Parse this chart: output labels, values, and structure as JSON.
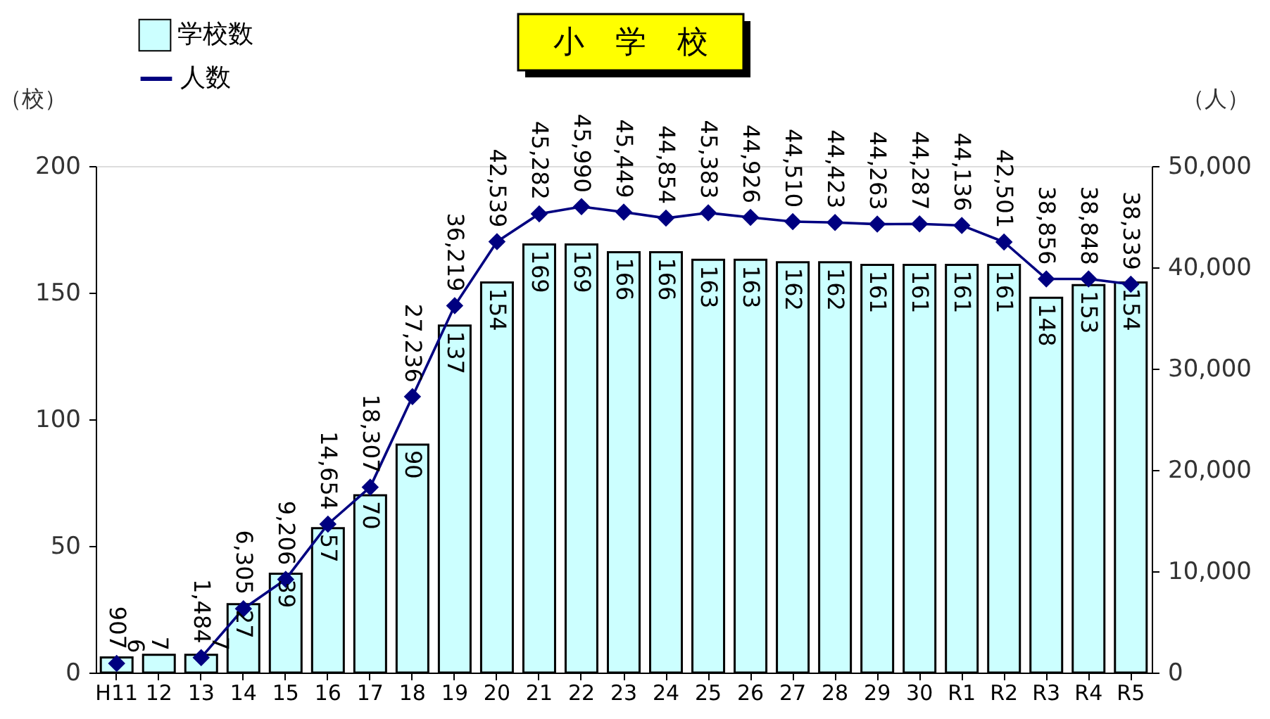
{
  "chart_data": {
    "type": "bar",
    "title": "小　学　校",
    "categories": [
      "H11",
      "12",
      "13",
      "14",
      "15",
      "16",
      "17",
      "18",
      "19",
      "20",
      "21",
      "22",
      "23",
      "24",
      "25",
      "26",
      "27",
      "28",
      "29",
      "30",
      "R1",
      "R2",
      "R3",
      "R4",
      "R5"
    ],
    "series": [
      {
        "name": "学校数",
        "type": "bar",
        "color": "#ccffff",
        "values": [
          6,
          7,
          7,
          27,
          39,
          57,
          70,
          90,
          137,
          154,
          169,
          169,
          166,
          166,
          163,
          163,
          162,
          162,
          161,
          161,
          161,
          161,
          148,
          153,
          154
        ]
      },
      {
        "name": "人数",
        "type": "line",
        "axis": "y2",
        "color": "#000080",
        "values": [
          907,
          null,
          1484,
          6305,
          9206,
          14654,
          18307,
          27236,
          36219,
          42539,
          45282,
          45990,
          45449,
          44854,
          45383,
          44926,
          44510,
          44423,
          44263,
          44287,
          44136,
          42501,
          38856,
          38848,
          38339
        ],
        "value_labels": [
          "907",
          null,
          "1,484",
          "6,305",
          "9,206",
          "14,654",
          "18,307",
          "27,236",
          "36,219",
          "42,539",
          "45,282",
          "45,990",
          "45,449",
          "44,854",
          "45,383",
          "44,926",
          "44,510",
          "44,423",
          "44,263",
          "44,287",
          "44,136",
          "42,501",
          "38,856",
          "38,848",
          "38,339"
        ]
      }
    ],
    "ylabel": "（校）",
    "y2label": "（人）",
    "ylim": [
      0,
      200
    ],
    "yticks": [
      0,
      50,
      100,
      150,
      200
    ],
    "y2lim": [
      0,
      50000
    ],
    "y2ticks": [
      0,
      {
        "value": 10000,
        "label": "10,000"
      },
      {
        "value": 20000,
        "label": "20,000"
      },
      {
        "value": 30000,
        "label": "30,000"
      },
      {
        "value": 40000,
        "label": "40,000"
      },
      {
        "value": 50000,
        "label": "50,000"
      }
    ],
    "data_labels": true,
    "marker": "diamond",
    "legend": "top left",
    "grid": false
  }
}
